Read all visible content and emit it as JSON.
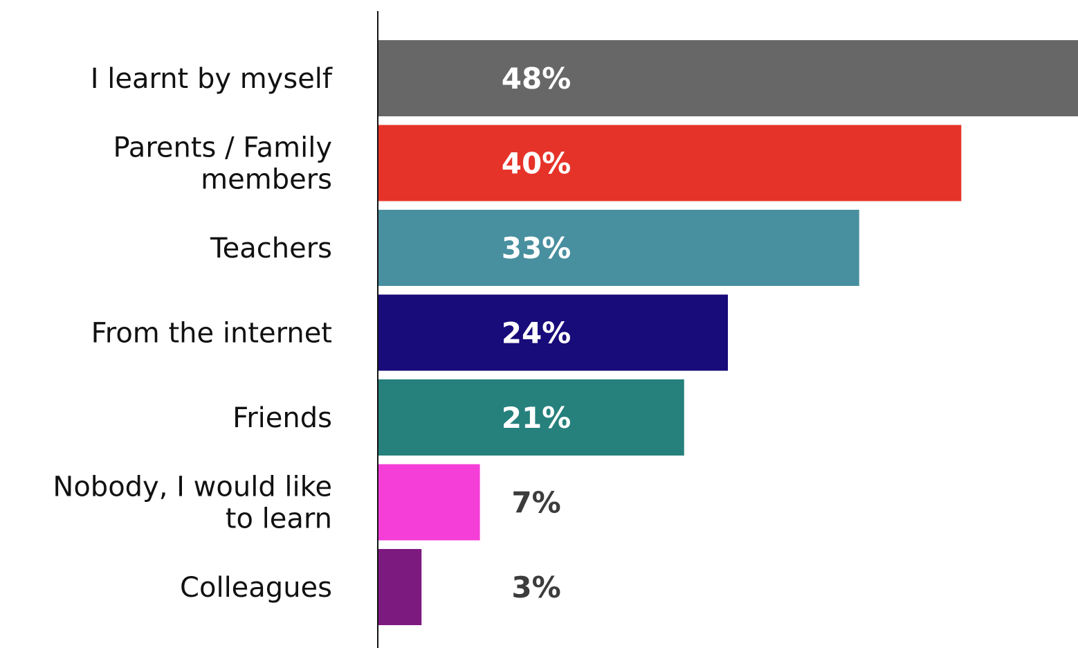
{
  "chart_data": {
    "type": "bar",
    "orientation": "horizontal",
    "categories": [
      "I learnt by myself",
      "Parents / Family members",
      "Teachers",
      "From the internet",
      "Friends",
      "Nobody, I would like to learn",
      "Colleagues"
    ],
    "category_lines": [
      [
        "I learnt by myself"
      ],
      [
        "Parents / Family",
        "members"
      ],
      [
        "Teachers"
      ],
      [
        "From the internet"
      ],
      [
        "Friends"
      ],
      [
        "Nobody, I would like",
        "to learn"
      ],
      [
        "Colleagues"
      ]
    ],
    "values": [
      48,
      40,
      33,
      24,
      21,
      7,
      3
    ],
    "value_labels": [
      "48%",
      "40%",
      "33%",
      "24%",
      "21%",
      "7%",
      "3%"
    ],
    "colors": [
      "#676767",
      "#e63329",
      "#488f9f",
      "#180b7a",
      "#26807c",
      "#f53ed8",
      "#7c1a80"
    ],
    "label_colors": [
      "#ffffff",
      "#ffffff",
      "#ffffff",
      "#ffffff",
      "#ffffff",
      "#3c3c3c",
      "#3c3c3c"
    ],
    "xlim": [
      0,
      48
    ],
    "grid": false,
    "legend": "none",
    "title": "",
    "xlabel": "",
    "ylabel": ""
  }
}
